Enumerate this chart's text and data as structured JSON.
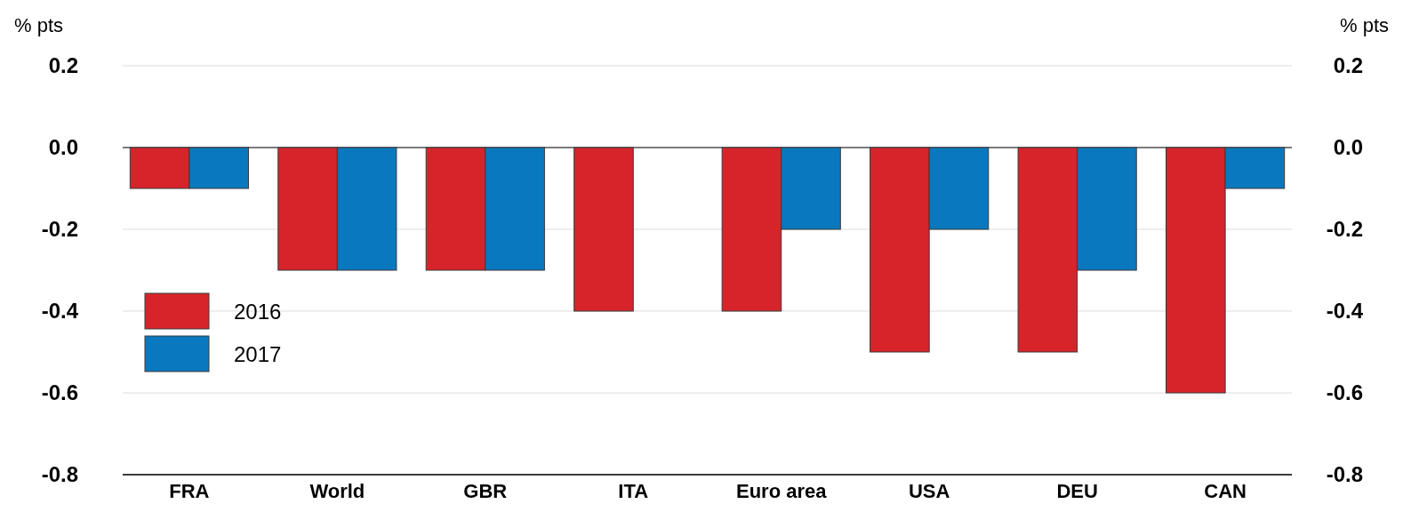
{
  "chart_data": {
    "type": "bar",
    "ylabel": "% pts",
    "y2label": "% pts",
    "categories": [
      "FRA",
      "World",
      "GBR",
      "ITA",
      "Euro area",
      "USA",
      "DEU",
      "CAN"
    ],
    "series": [
      {
        "name": "2016",
        "color": "#d7242a",
        "values": [
          -0.1,
          -0.3,
          -0.3,
          -0.4,
          -0.4,
          -0.5,
          -0.5,
          -0.6
        ]
      },
      {
        "name": "2017",
        "color": "#0a78bf",
        "values": [
          -0.1,
          -0.3,
          -0.3,
          0,
          -0.2,
          -0.2,
          -0.3,
          -0.1
        ]
      }
    ],
    "ylim": [
      -0.8,
      0.2
    ],
    "yticks": [
      {
        "value": -0.8,
        "label": "-0.8"
      },
      {
        "value": -0.6,
        "label": "-0.6"
      },
      {
        "value": -0.4,
        "label": "-0.4"
      },
      {
        "value": -0.2,
        "label": "-0.2"
      },
      {
        "value": 0,
        "label": "0.0"
      },
      {
        "value": 0.2,
        "label": "0.2"
      }
    ],
    "y2lim": [
      -0.8,
      0.2
    ],
    "y2ticks": [
      {
        "value": -0.8,
        "label": "-0.8"
      },
      {
        "value": -0.6,
        "label": "-0.6"
      },
      {
        "value": -0.4,
        "label": "-0.4"
      },
      {
        "value": -0.2,
        "label": "-0.2"
      },
      {
        "value": 0,
        "label": "0.0"
      },
      {
        "value": 0.2,
        "label": "0.2"
      }
    ],
    "grid": "y",
    "legend": "center left"
  }
}
